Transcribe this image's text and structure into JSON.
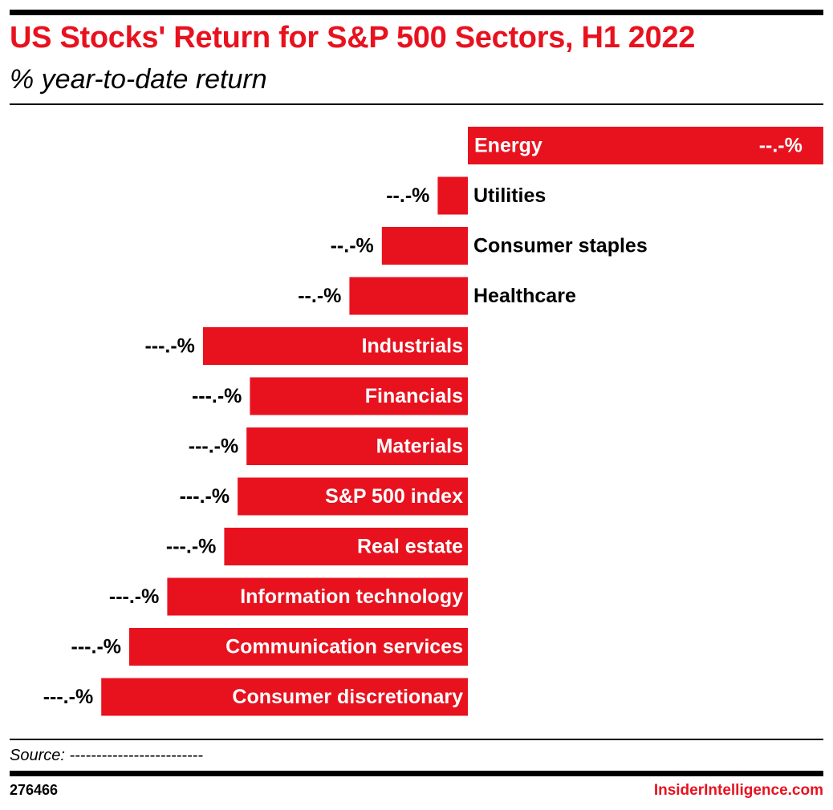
{
  "header": {
    "title": "US Stocks' Return for S&P 500 Sectors, H1 2022",
    "subtitle": "% year-to-date return"
  },
  "footer": {
    "source": "Source: -------------------------",
    "chart_id": "276466",
    "brand": "InsiderIntelligence.com"
  },
  "colors": {
    "bar": "#e8121f",
    "text": "#000000",
    "label_on_bar": "#ffffff"
  },
  "chart_data": {
    "type": "bar",
    "orientation": "horizontal",
    "categories": [
      "Energy",
      "Utilities",
      "Consumer staples",
      "Healthcare",
      "Industrials",
      "Financials",
      "Materials",
      "S&P 500 index",
      "Real estate",
      "Information technology",
      "Communication services",
      "Consumer discretionary"
    ],
    "values": [
      31.8,
      -2.7,
      -7.7,
      -10.6,
      -23.7,
      -19.5,
      -19.8,
      -20.6,
      -21.8,
      -26.9,
      -30.3,
      -32.8
    ],
    "value_labels": [
      "--.-%",
      "--.-%",
      "--.-%",
      "--.-%",
      "---.-%",
      "---.-%",
      "---.-%",
      "---.-%",
      "---.-%",
      "---.-%",
      "---.-%",
      "---.-%"
    ],
    "xlim": [
      -41,
      32
    ],
    "title": "US Stocks' Return for S&P 500 Sectors, H1 2022",
    "xlabel": "",
    "ylabel": "",
    "grid": false,
    "legend": "none"
  }
}
